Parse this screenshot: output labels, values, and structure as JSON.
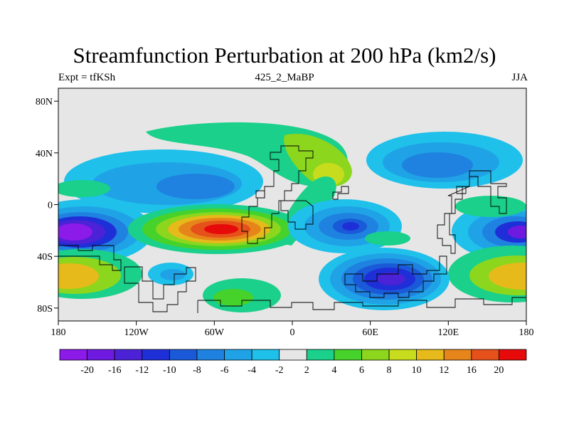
{
  "title": "Streamfunction Perturbation at 200 hPa (km2/s)",
  "left_string": "Expt = tfKSh",
  "center_string": "425_2_MaBP",
  "right_string": "JJA",
  "map": {
    "projection": "cylindrical equidistant",
    "lon_range": [
      -180,
      180
    ],
    "lat_range": [
      -90,
      90
    ],
    "missing_color": "#e6e6e6",
    "lon_ticks": [
      {
        "value": -180,
        "label": "180"
      },
      {
        "value": -120,
        "label": "120W"
      },
      {
        "value": -60,
        "label": "60W"
      },
      {
        "value": 0,
        "label": "0"
      },
      {
        "value": 60,
        "label": "60E"
      },
      {
        "value": 120,
        "label": "120E"
      },
      {
        "value": 180,
        "label": "180"
      }
    ],
    "lat_ticks": [
      {
        "value": 80,
        "label": "80N"
      },
      {
        "value": 40,
        "label": "40N"
      },
      {
        "value": 0,
        "label": "0"
      },
      {
        "value": -40,
        "label": "40S"
      },
      {
        "value": -80,
        "label": "80S"
      }
    ]
  },
  "colorbar": {
    "labels": [
      "-20",
      "-16",
      "-12",
      "-10",
      "-8",
      "-6",
      "-4",
      "-2",
      "2",
      "4",
      "6",
      "8",
      "10",
      "12",
      "16",
      "20"
    ],
    "colors": [
      "#8c1ae8",
      "#6e1ae0",
      "#4b22d6",
      "#1f2fd8",
      "#1a5ad8",
      "#1f82e0",
      "#1fa3e6",
      "#1fc0ea",
      "#e6e6e6",
      "#1ad08a",
      "#46d22a",
      "#8cd61e",
      "#c8dc1e",
      "#e6ba1a",
      "#e6861a",
      "#e6501a",
      "#e60a0a"
    ]
  },
  "chart_data": {
    "type": "heatmap",
    "title": "Streamfunction Perturbation at 200 hPa (km2/s)",
    "units": "km2/s",
    "contour_levels": [
      -20,
      -16,
      -12,
      -10,
      -8,
      -6,
      -4,
      -2,
      2,
      4,
      6,
      8,
      10,
      12,
      16,
      20
    ],
    "features": [
      {
        "lon": -162,
        "lat": -27,
        "value": -22
      },
      {
        "lon": 162,
        "lat": -27,
        "value": -18
      },
      {
        "lon": -122,
        "lat": 22,
        "value": -8
      },
      {
        "lon": -52,
        "lat": -22,
        "value": 22
      },
      {
        "lon": -45,
        "lat": -80,
        "value": 6
      },
      {
        "lon": 44,
        "lat": -20,
        "value": -10
      },
      {
        "lon": 66,
        "lat": -66,
        "value": -16
      },
      {
        "lon": 130,
        "lat": 40,
        "value": -7
      },
      {
        "lon": 16,
        "lat": 42,
        "value": 9
      },
      {
        "lon": 175,
        "lat": -60,
        "value": 12
      },
      {
        "lon": -170,
        "lat": -60,
        "value": 10
      }
    ]
  }
}
